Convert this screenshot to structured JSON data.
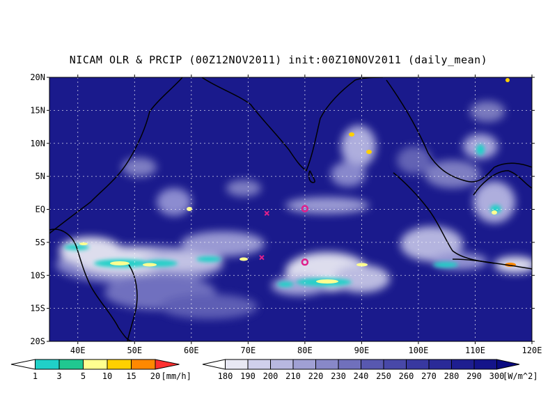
{
  "title": "NICAM OLR & PRCIP (00Z12NOV2011) init:00Z10NOV2011 (daily_mean)",
  "lat_labels": [
    "20N",
    "15N",
    "10N",
    "5N",
    "EQ",
    "5S",
    "10S",
    "15S",
    "20S"
  ],
  "lon_labels": [
    "40E",
    "50E",
    "60E",
    "70E",
    "80E",
    "90E",
    "100E",
    "110E",
    "120E"
  ],
  "precip_colorbar": {
    "labels": [
      "1",
      "3",
      "5",
      "10",
      "15",
      "20"
    ],
    "unit": "[mm/h]",
    "colors": [
      "#ffffff",
      "#20d0c8",
      "#20c890",
      "#ffff90",
      "#ffd000",
      "#ff8800",
      "#ff3030"
    ]
  },
  "olr_colorbar": {
    "labels": [
      "180",
      "190",
      "200",
      "210",
      "220",
      "230",
      "240",
      "250",
      "260",
      "270",
      "280",
      "290",
      "300"
    ],
    "unit": "[W/m^2]",
    "colors": [
      "#ffffff",
      "#e8e8f4",
      "#d0d0ec",
      "#b8b8e0",
      "#a0a0d4",
      "#8888c8",
      "#7070bc",
      "#5858b0",
      "#4848a8",
      "#3838a0",
      "#2a2a98",
      "#1e1e90",
      "#14148a",
      "#0a0a80"
    ]
  },
  "markers": [
    {
      "type": "circle",
      "lon": 80.0,
      "lat": 0.1,
      "color": "#e0208c"
    },
    {
      "type": "circle",
      "lon": 80.0,
      "lat": -8.0,
      "color": "#e0208c"
    },
    {
      "type": "cross",
      "lon": 73.3,
      "lat": -0.6,
      "color": "#e0208c"
    },
    {
      "type": "cross",
      "lon": 72.4,
      "lat": -7.3,
      "color": "#e0208c"
    }
  ],
  "colors": {
    "ocean": "#1a1a8c",
    "coast": "#000000",
    "grid": "#ffffff"
  }
}
